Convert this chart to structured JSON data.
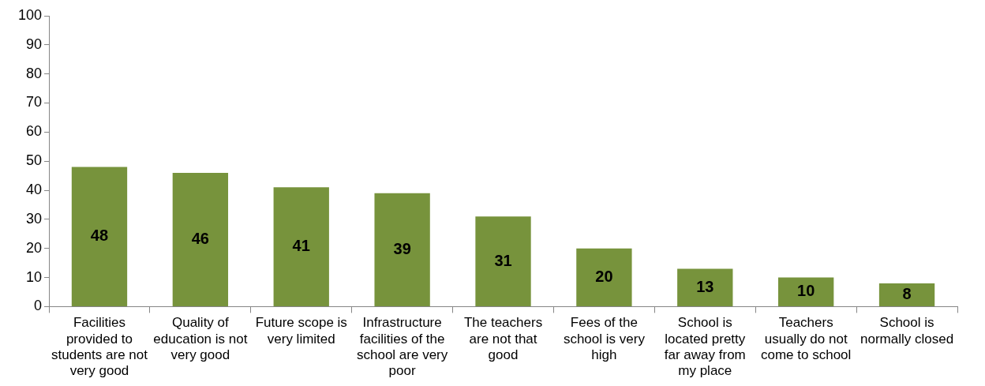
{
  "chart_data": {
    "type": "bar",
    "categories": [
      "Facilities provided to students are not very good",
      "Quality of education is not very good",
      "Future scope is very limited",
      "Infrastructure facilities of the school are very poor",
      "The teachers are not that good",
      "Fees of the school is very high",
      "School is located pretty far away from my place",
      "Teachers usually do not come to school",
      "School is normally closed"
    ],
    "values": [
      48,
      46,
      41,
      39,
      31,
      20,
      13,
      10,
      8
    ],
    "color": "#77933c",
    "ylim": [
      0,
      100
    ],
    "yticks": [
      0,
      10,
      20,
      30,
      40,
      50,
      60,
      70,
      80,
      90,
      100
    ],
    "grid": false,
    "legend": false,
    "data_labels": true
  }
}
